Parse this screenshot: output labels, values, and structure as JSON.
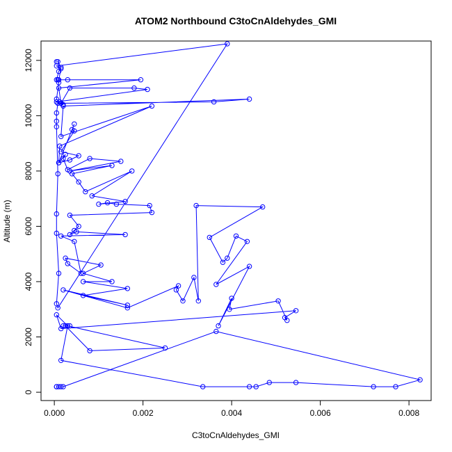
{
  "chart_data": {
    "type": "line",
    "title": "ATOM2 Northbound C3toCnAldehydes_GMI",
    "xlabel": "C3toCnAldehydes_GMI",
    "ylabel": "Altitude (m)",
    "xlim": [
      -0.0003,
      0.0085
    ],
    "ylim": [
      -300,
      12700
    ],
    "x_ticks": [
      0,
      0.002,
      0.004,
      0.006,
      0.008
    ],
    "x_tick_labels": [
      "0.000",
      "0.002",
      "0.004",
      "0.006",
      "0.008"
    ],
    "y_ticks": [
      0,
      2000,
      4000,
      6000,
      8000,
      10000,
      12000
    ],
    "y_tick_labels": [
      "0",
      "2000",
      "4000",
      "6000",
      "8000",
      "10000",
      "12000"
    ],
    "grid": false,
    "series": [
      {
        "color": "#0000ff",
        "marker": "open-circle",
        "x": [
          5e-05,
          8e-05,
          0.00015,
          0.0001,
          5e-05,
          8e-05,
          0.0001,
          5e-05,
          0.00012,
          8e-05,
          5e-05,
          5e-05,
          5e-05,
          8e-05,
          5e-05,
          5e-05,
          0.0001,
          5e-05,
          8e-05,
          0.0039,
          5e-05,
          0.00015,
          0.0001,
          0.0003,
          0.00195,
          0.0001,
          0.00015,
          0.00035,
          0.0018,
          0.0021,
          5e-05,
          0.0002,
          0.00015,
          0.0036,
          0.0044,
          0.0002,
          0.00015,
          0.0022,
          0.00012,
          0.0001,
          0.00045,
          0.0004,
          0.00045,
          0.00015,
          0.00055,
          0.00035,
          0.0001,
          0.00025,
          0.0002,
          0.0003,
          0.0008,
          0.0015,
          0.00035,
          0.0013,
          0.0004,
          0.00055,
          0.0007,
          0.00175,
          0.00085,
          0.0016,
          0.001,
          0.0012,
          0.0014,
          0.00215,
          0.0022,
          0.00035,
          0.00055,
          0.00045,
          0.00035,
          0.0005,
          0.0016,
          0.00015,
          0.00045,
          0.0006,
          0.0003,
          0.00025,
          0.00105,
          0.00065,
          0.0013,
          0.00065,
          0.00165,
          0.00065,
          0.00165,
          0.0002,
          0.00165,
          0.0028,
          0.00275,
          0.0029,
          0.00315,
          0.00325,
          0.0032,
          0.0047,
          0.0035,
          0.0038,
          0.0039,
          0.0041,
          0.00435,
          0.00365,
          0.0044,
          0.0037,
          0.004,
          0.00395,
          0.00505,
          0.00525,
          0.0052,
          0.00545,
          0.00015,
          5e-05,
          0.0003,
          0.0002,
          0.00035,
          0.00025,
          0.0008,
          0.0025,
          0.0003,
          0.00015,
          0.00335,
          0.0044,
          0.00455,
          0.00485,
          0.00545,
          0.0072,
          0.0077,
          0.00825,
          0.00365,
          0.0002,
          5e-05,
          0.0001,
          0.00015,
          5e-05
        ],
        "y": [
          11950,
          11950,
          11750,
          11600,
          11300,
          11300,
          11200,
          10600,
          10500,
          10450,
          10100,
          9800,
          9600,
          7900,
          6450,
          5750,
          4300,
          3200,
          3050,
          12600,
          11800,
          11700,
          11300,
          11300,
          11300,
          11000,
          10450,
          11000,
          11000,
          10950,
          10500,
          10400,
          10450,
          10500,
          10600,
          10350,
          9250,
          10350,
          8900,
          8300,
          9700,
          9500,
          9450,
          8700,
          8550,
          8400,
          8300,
          8600,
          8450,
          8050,
          8450,
          8350,
          8000,
          8200,
          7900,
          7600,
          7250,
          8000,
          7100,
          6900,
          6800,
          6850,
          6800,
          6750,
          6500,
          6400,
          6000,
          5850,
          5700,
          5800,
          5700,
          5650,
          5450,
          4300,
          4650,
          4850,
          4600,
          4300,
          4000,
          4000,
          3750,
          3500,
          3150,
          3700,
          3050,
          3850,
          3700,
          3300,
          4150,
          3300,
          6750,
          6700,
          5600,
          4700,
          4850,
          5650,
          5450,
          3900,
          4550,
          2400,
          3400,
          3000,
          3300,
          2600,
          2700,
          2950,
          2300,
          2800,
          2400,
          2400,
          2400,
          2400,
          1500,
          1600,
          2400,
          1150,
          200,
          200,
          200,
          350,
          350,
          200,
          200,
          450,
          2200,
          200,
          200,
          200,
          200,
          200
        ]
      }
    ]
  }
}
